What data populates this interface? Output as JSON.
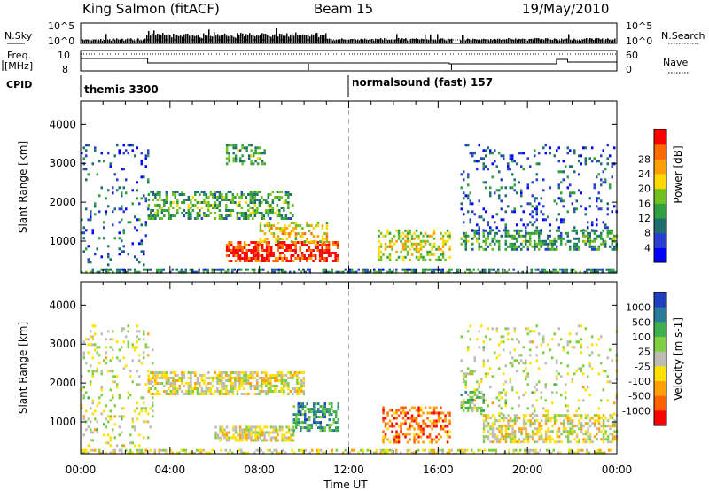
{
  "header": {
    "station": "King Salmon (fitACF)",
    "beam": "Beam 15",
    "date": "19/May/2010"
  },
  "top_panels": {
    "nsky_label": "N.Sky",
    "nsearch_label": "N.Search",
    "count_ticks": [
      "10^5",
      "10^0"
    ],
    "freq_label_1": "Freq.",
    "freq_label_2": "[MHz]",
    "freq_ticks": [
      "10",
      "8"
    ],
    "nave_label": "Nave",
    "nave_ticks": [
      "60",
      "0"
    ],
    "cpid_label": "CPID",
    "cpid_modes": [
      {
        "name": "themis 3300",
        "start_hour": 0,
        "end_hour": 12
      },
      {
        "name": "normalsound (fast) 157",
        "start_hour": 12,
        "end_hour": 24
      }
    ]
  },
  "chart_data": [
    {
      "type": "heatmap",
      "name": "power-panel",
      "ylabel": "Slant Range [km]",
      "xlabel": "",
      "xlim_hours": [
        0,
        24
      ],
      "ylim": [
        180,
        4600
      ],
      "yticks": [
        1000,
        2000,
        3000,
        4000
      ],
      "colorbar_label": "Power [dB]",
      "colorbar_ticks": [
        "4",
        "8",
        "12",
        "16",
        "20",
        "24",
        "28"
      ],
      "colorbar_colors": [
        "#0000ff",
        "#2a3fd0",
        "#1f6e6e",
        "#2f9f3f",
        "#70c020",
        "#ffd800",
        "#ffa000",
        "#ff6a00",
        "#ff0000"
      ],
      "features": [
        {
          "start_hour": 0.0,
          "end_hour": 24.0,
          "range_km": [
            180,
            300
          ],
          "level": 0.25,
          "coverage": 0.55
        },
        {
          "start_hour": 3.0,
          "end_hour": 9.5,
          "range_km": [
            1600,
            2300
          ],
          "level": 0.35,
          "coverage": 0.45
        },
        {
          "start_hour": 6.5,
          "end_hour": 11.5,
          "range_km": [
            500,
            1000
          ],
          "level": 0.85,
          "coverage": 0.65
        },
        {
          "start_hour": 8.0,
          "end_hour": 11.0,
          "range_km": [
            1000,
            1500
          ],
          "level": 0.55,
          "coverage": 0.45
        },
        {
          "start_hour": 13.3,
          "end_hour": 16.5,
          "range_km": [
            500,
            1300
          ],
          "level": 0.5,
          "coverage": 0.4
        },
        {
          "start_hour": 17.0,
          "end_hour": 24.0,
          "range_km": [
            800,
            1300
          ],
          "level": 0.3,
          "coverage": 0.45
        },
        {
          "start_hour": 17.0,
          "end_hour": 24.0,
          "range_km": [
            1300,
            3500
          ],
          "level": 0.15,
          "coverage": 0.12
        },
        {
          "start_hour": 0.0,
          "end_hour": 3.0,
          "range_km": [
            400,
            3500
          ],
          "level": 0.15,
          "coverage": 0.12
        },
        {
          "start_hour": 6.5,
          "end_hour": 8.2,
          "range_km": [
            3000,
            3500
          ],
          "level": 0.35,
          "coverage": 0.4
        }
      ]
    },
    {
      "type": "heatmap",
      "name": "velocity-panel",
      "ylabel": "Slant Range [km]",
      "xlabel": "Time UT",
      "xlim_hours": [
        0,
        24
      ],
      "ylim": [
        180,
        4600
      ],
      "yticks": [
        1000,
        2000,
        3000,
        4000
      ],
      "xticks": [
        "00:00",
        "04:00",
        "08:00",
        "12:00",
        "16:00",
        "20:00",
        "00:00"
      ],
      "colorbar_label": "Velocity [m s-1]",
      "colorbar_ticks": [
        "1000",
        "500",
        "100",
        "25",
        "-25",
        "-100",
        "-500",
        "-1000"
      ],
      "colorbar_colors": [
        "#1f3fbf",
        "#2a7a9a",
        "#3fae4f",
        "#7fd040",
        "#bcbcb4",
        "#ffe000",
        "#ffa000",
        "#ff6000",
        "#ff0000"
      ],
      "features": [
        {
          "start_hour": 0.0,
          "end_hour": 24.0,
          "range_km": [
            180,
            300
          ],
          "level": 0.45,
          "coverage": 0.5
        },
        {
          "start_hour": 3.0,
          "end_hour": 10.0,
          "range_km": [
            1700,
            2300
          ],
          "level": 0.45,
          "coverage": 0.6
        },
        {
          "start_hour": 6.0,
          "end_hour": 9.5,
          "range_km": [
            500,
            900
          ],
          "level": 0.45,
          "coverage": 0.7
        },
        {
          "start_hour": 9.5,
          "end_hour": 11.5,
          "range_km": [
            800,
            1500
          ],
          "level": 0.75,
          "coverage": 0.55
        },
        {
          "start_hour": 13.5,
          "end_hour": 16.5,
          "range_km": [
            500,
            1400
          ],
          "level": 0.2,
          "coverage": 0.45
        },
        {
          "start_hour": 17.0,
          "end_hour": 18.0,
          "range_km": [
            1300,
            1800
          ],
          "level": 0.7,
          "coverage": 0.5
        },
        {
          "start_hour": 18.0,
          "end_hour": 24.0,
          "range_km": [
            500,
            1200
          ],
          "level": 0.45,
          "coverage": 0.55
        },
        {
          "start_hour": 17.0,
          "end_hour": 24.0,
          "range_km": [
            1200,
            3500
          ],
          "level": 0.5,
          "coverage": 0.12
        },
        {
          "start_hour": 0.0,
          "end_hour": 3.2,
          "range_km": [
            400,
            3500
          ],
          "level": 0.5,
          "coverage": 0.14
        }
      ]
    }
  ]
}
